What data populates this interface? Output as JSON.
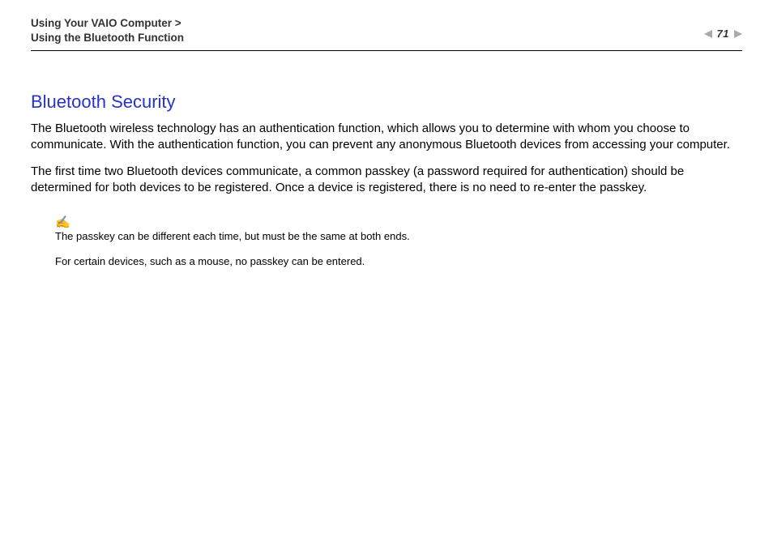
{
  "header": {
    "breadcrumb_line1": "Using Your VAIO Computer >",
    "breadcrumb_line2": "Using the Bluetooth Function",
    "page_number_prefix": "n",
    "page_number": "71",
    "page_number_suffix": "N"
  },
  "section": {
    "title": "Bluetooth Security",
    "para1": "The Bluetooth wireless technology has an authentication function, which allows you to determine with whom you choose to communicate. With the authentication function, you can prevent any anonymous Bluetooth devices from accessing your computer.",
    "para2": "The first time two Bluetooth devices communicate, a common passkey (a password required for authentication) should be determined for both devices to be registered. Once a device is registered, there is no need to re-enter the passkey."
  },
  "note": {
    "icon": "✍",
    "line1": "The passkey can be different each time, but must be the same at both ends.",
    "line2": "For certain devices, such as a mouse, no passkey can be entered."
  },
  "colors": {
    "heading": "#2633c8",
    "text": "#000000",
    "arrow": "#a9a9a9",
    "background": "#ffffff"
  }
}
